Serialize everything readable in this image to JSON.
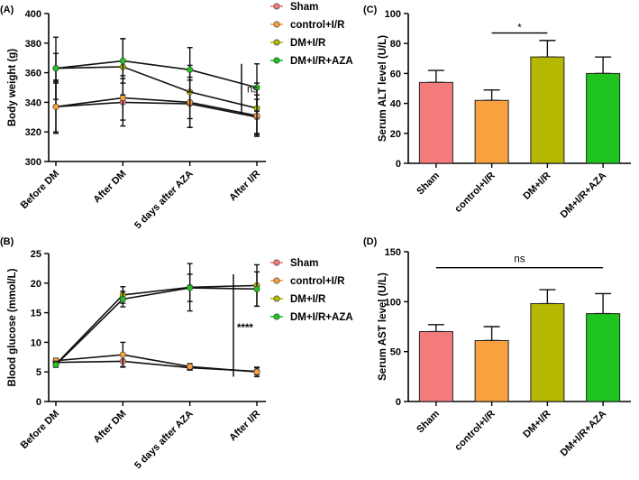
{
  "colors": {
    "Sham": "#f47b7b",
    "control+I/R": "#f9a03f",
    "DM+I/R": "#b5b800",
    "DM+I/R+AZA": "#1fc41f"
  },
  "chart_data": [
    {
      "id": "A",
      "panel_label": "(A)",
      "type": "line",
      "ylabel": "Body weight (g)",
      "ylim": [
        300,
        400
      ],
      "yticks": [
        300,
        320,
        340,
        360,
        380,
        400
      ],
      "categories": [
        "Before DM",
        "After DM",
        "5 days after AZA",
        "After I/R"
      ],
      "series": [
        {
          "name": "Sham",
          "values": [
            337,
            340,
            339,
            330
          ],
          "err": [
            18,
            16,
            16,
            12
          ]
        },
        {
          "name": "control+I/R",
          "values": [
            337,
            343,
            340,
            331
          ],
          "err": [
            17,
            15,
            17,
            14
          ]
        },
        {
          "name": "DM+I/R",
          "values": [
            363,
            364,
            347,
            336
          ],
          "err": [
            21,
            19,
            18,
            17
          ]
        },
        {
          "name": "DM+I/R+AZA",
          "values": [
            363,
            368,
            362,
            350
          ],
          "err": [
            10,
            15,
            15,
            16
          ]
        }
      ],
      "legend": [
        "Sham",
        "control+I/R",
        "DM+I/R",
        "DM+I/R+AZA"
      ],
      "annotation": "ns"
    },
    {
      "id": "B",
      "panel_label": "(B)",
      "type": "line",
      "ylabel": "Blood glucose (mmol/L)",
      "ylim": [
        0,
        25
      ],
      "yticks": [
        0,
        5,
        10,
        15,
        20,
        25
      ],
      "categories": [
        "Before DM",
        "After DM",
        "5 days after AZA",
        "After I/R"
      ],
      "series": [
        {
          "name": "Sham",
          "values": [
            6.6,
            6.8,
            5.7,
            5.1
          ],
          "err": [
            0.5,
            0.9,
            0.4,
            0.6
          ]
        },
        {
          "name": "control+I/R",
          "values": [
            6.9,
            7.9,
            5.9,
            5.0
          ],
          "err": [
            0.4,
            2.1,
            0.5,
            0.8
          ]
        },
        {
          "name": "DM+I/R",
          "values": [
            6.3,
            18.0,
            19.3,
            19.6
          ],
          "err": [
            0.5,
            1.4,
            4.0,
            3.5
          ]
        },
        {
          "name": "DM+I/R+AZA",
          "values": [
            6.2,
            17.3,
            19.2,
            19.0
          ],
          "err": [
            0.4,
            1.3,
            2.3,
            2.9
          ]
        }
      ],
      "legend": [
        "Sham",
        "control+I/R",
        "DM+I/R",
        "DM+I/R+AZA"
      ],
      "annotation": "****"
    },
    {
      "id": "C",
      "panel_label": "(C)",
      "type": "bar",
      "ylabel": "Serum ALT level (U/L)",
      "ylim": [
        0,
        100
      ],
      "yticks": [
        0,
        20,
        40,
        60,
        80,
        100
      ],
      "categories": [
        "Sham",
        "control+I/R",
        "DM+I/R",
        "DM+I/R+AZA"
      ],
      "values": [
        54,
        42,
        71,
        60
      ],
      "err": [
        8,
        7,
        11,
        11
      ],
      "annotation": "*"
    },
    {
      "id": "D",
      "panel_label": "(D)",
      "type": "bar",
      "ylabel": "Serum AST level (U/L)",
      "ylim": [
        0,
        150
      ],
      "yticks": [
        0,
        50,
        100,
        150
      ],
      "categories": [
        "Sham",
        "control+I/R",
        "DM+I/R",
        "DM+I/R+AZA"
      ],
      "values": [
        70,
        61,
        98,
        88
      ],
      "err": [
        7,
        14,
        14,
        20
      ],
      "annotation": "ns"
    }
  ]
}
